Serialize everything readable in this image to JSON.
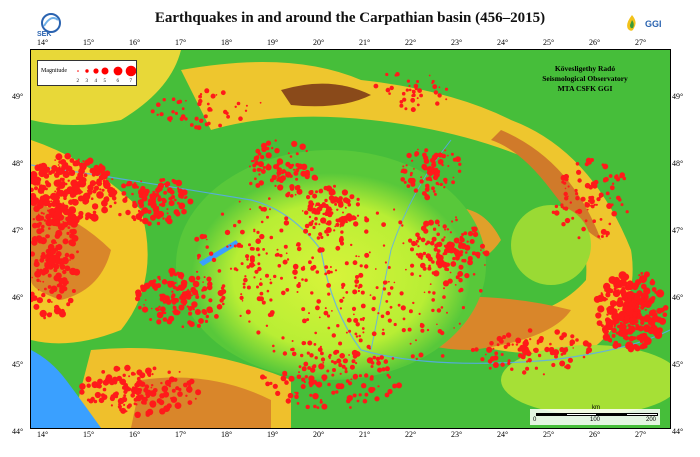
{
  "title": "Earthquakes in and around the Carpathian basin (456–2015)",
  "logos": {
    "left": {
      "text": "SEK",
      "icon": "globe-swirl-icon"
    },
    "right": {
      "text": "GGI",
      "icon": "flame-logo-icon"
    }
  },
  "legend": {
    "label": "Magnitude",
    "magnitudes": [
      "2",
      "3",
      "4",
      "5",
      "6",
      "7"
    ],
    "symbol_color": "#ff0000"
  },
  "observatory": {
    "lines": [
      "Kövesligethy Radó",
      "Seismological Observatory",
      "MTA CSFK GGI"
    ]
  },
  "scale_bar": {
    "unit": "km",
    "labels": [
      "0",
      "100",
      "200"
    ]
  },
  "axes": {
    "longitude": [
      "14°",
      "15°",
      "16°",
      "17°",
      "18°",
      "19°",
      "20°",
      "21°",
      "22°",
      "23°",
      "24°",
      "25°",
      "26°",
      "27°"
    ],
    "latitude": [
      "49°",
      "48°",
      "47°",
      "46°",
      "45°",
      "44°"
    ]
  },
  "colors": {
    "lowland": "#c8f03a",
    "hills": "#34b83a",
    "mountains": "#f6d52a",
    "high_mountains": "#d98a2a",
    "peaks": "#8a4a1a",
    "sea": "#3aa0ff",
    "quake": "#ff1a1a"
  }
}
